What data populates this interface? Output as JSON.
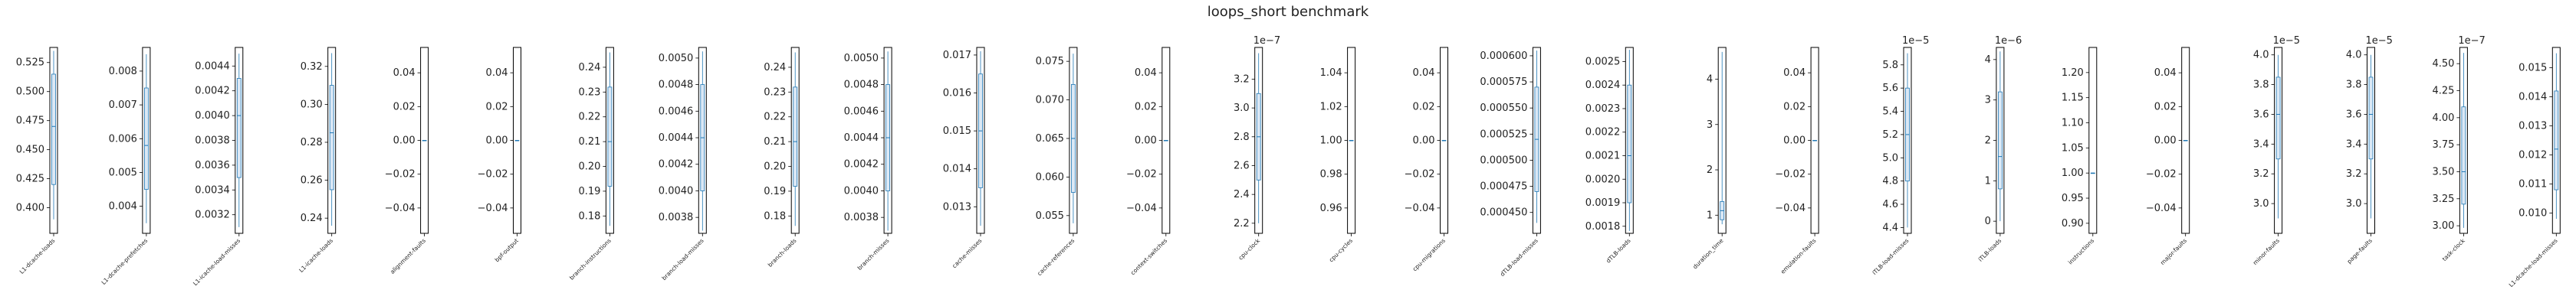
{
  "title": "loops_short benchmark",
  "colors": {
    "box": "#1f77b4",
    "fill": "#ffffff",
    "axis": "#000000",
    "text": "#222222"
  },
  "chart_data": [
    {
      "type": "box",
      "label": "L1-dcache-loads",
      "ylim": [
        0.378,
        0.538
      ],
      "ticks": [
        "0.400",
        "0.425",
        "0.450",
        "0.475",
        "0.500",
        "0.525"
      ],
      "tickvals": [
        0.4,
        0.425,
        0.45,
        0.475,
        0.5,
        0.525
      ],
      "q1": 0.42,
      "median": 0.47,
      "q3": 0.515,
      "min": 0.39,
      "max": 0.535
    },
    {
      "type": "box",
      "label": "L1-dcache-prefetches",
      "ylim": [
        0.0032,
        0.0087
      ],
      "ticks": [
        "0.004",
        "0.005",
        "0.006",
        "0.007",
        "0.008"
      ],
      "tickvals": [
        0.004,
        0.005,
        0.006,
        0.007,
        0.008
      ],
      "q1": 0.0045,
      "median": 0.0058,
      "q3": 0.0075,
      "min": 0.0035,
      "max": 0.0085
    },
    {
      "type": "box",
      "label": "L1-icache-load-misses",
      "ylim": [
        0.00305,
        0.00455
      ],
      "ticks": [
        "0.0032",
        "0.0034",
        "0.0036",
        "0.0038",
        "0.0040",
        "0.0042",
        "0.0044"
      ],
      "tickvals": [
        0.0032,
        0.0034,
        0.0036,
        0.0038,
        0.004,
        0.0042,
        0.0044
      ],
      "q1": 0.0035,
      "median": 0.004,
      "q3": 0.0043,
      "min": 0.0031,
      "max": 0.0045
    },
    {
      "type": "box",
      "label": "L1-icache-loads",
      "ylim": [
        0.232,
        0.33
      ],
      "ticks": [
        "0.24",
        "0.26",
        "0.28",
        "0.30",
        "0.32"
      ],
      "tickvals": [
        0.24,
        0.26,
        0.28,
        0.3,
        0.32
      ],
      "q1": 0.255,
      "median": 0.285,
      "q3": 0.31,
      "min": 0.236,
      "max": 0.327
    },
    {
      "type": "box",
      "label": "alignment-faults",
      "ylim": [
        -0.055,
        0.055
      ],
      "ticks": [
        "−0.04",
        "−0.02",
        "0.00",
        "0.02",
        "0.04"
      ],
      "tickvals": [
        -0.04,
        -0.02,
        0,
        0.02,
        0.04
      ],
      "q1": 0,
      "median": 0,
      "q3": 0,
      "min": 0,
      "max": 0
    },
    {
      "type": "box",
      "label": "bpf-output",
      "ylim": [
        -0.055,
        0.055
      ],
      "ticks": [
        "−0.04",
        "−0.02",
        "0.00",
        "0.02",
        "0.04"
      ],
      "tickvals": [
        -0.04,
        -0.02,
        0,
        0.02,
        0.04
      ],
      "q1": 0,
      "median": 0,
      "q3": 0,
      "min": 0,
      "max": 0
    },
    {
      "type": "box",
      "label": "branch-instructions",
      "ylim": [
        0.173,
        0.248
      ],
      "ticks": [
        "0.18",
        "0.19",
        "0.20",
        "0.21",
        "0.22",
        "0.23",
        "0.24"
      ],
      "tickvals": [
        0.18,
        0.19,
        0.2,
        0.21,
        0.22,
        0.23,
        0.24
      ],
      "q1": 0.192,
      "median": 0.21,
      "q3": 0.232,
      "min": 0.176,
      "max": 0.246
    },
    {
      "type": "box",
      "label": "branch-load-misses",
      "ylim": [
        0.00368,
        0.00508
      ],
      "ticks": [
        "0.0038",
        "0.0040",
        "0.0042",
        "0.0044",
        "0.0046",
        "0.0048",
        "0.0050"
      ],
      "tickvals": [
        0.0038,
        0.004,
        0.0042,
        0.0044,
        0.0046,
        0.0048,
        0.005
      ],
      "q1": 0.004,
      "median": 0.0044,
      "q3": 0.0048,
      "min": 0.0037,
      "max": 0.00505
    },
    {
      "type": "box",
      "label": "branch-loads",
      "ylim": [
        0.173,
        0.248
      ],
      "ticks": [
        "0.18",
        "0.19",
        "0.20",
        "0.21",
        "0.22",
        "0.23",
        "0.24"
      ],
      "tickvals": [
        0.18,
        0.19,
        0.2,
        0.21,
        0.22,
        0.23,
        0.24
      ],
      "q1": 0.192,
      "median": 0.21,
      "q3": 0.232,
      "min": 0.176,
      "max": 0.246
    },
    {
      "type": "box",
      "label": "branch-misses",
      "ylim": [
        0.00368,
        0.00508
      ],
      "ticks": [
        "0.0038",
        "0.0040",
        "0.0042",
        "0.0044",
        "0.0046",
        "0.0048",
        "0.0050"
      ],
      "tickvals": [
        0.0038,
        0.004,
        0.0042,
        0.0044,
        0.0046,
        0.0048,
        0.005
      ],
      "q1": 0.004,
      "median": 0.0044,
      "q3": 0.0048,
      "min": 0.0037,
      "max": 0.00505
    },
    {
      "type": "box",
      "label": "cache-misses",
      "ylim": [
        0.0123,
        0.0172
      ],
      "ticks": [
        "0.013",
        "0.014",
        "0.015",
        "0.016",
        "0.017"
      ],
      "tickvals": [
        0.013,
        0.014,
        0.015,
        0.016,
        0.017
      ],
      "q1": 0.0135,
      "median": 0.015,
      "q3": 0.0165,
      "min": 0.0125,
      "max": 0.0171
    },
    {
      "type": "box",
      "label": "cache-references",
      "ylim": [
        0.0527,
        0.0768
      ],
      "ticks": [
        "0.055",
        "0.060",
        "0.065",
        "0.070",
        "0.075"
      ],
      "tickvals": [
        0.055,
        0.06,
        0.065,
        0.07,
        0.075
      ],
      "q1": 0.058,
      "median": 0.065,
      "q3": 0.072,
      "min": 0.054,
      "max": 0.076
    },
    {
      "type": "box",
      "label": "context-switches",
      "ylim": [
        -0.055,
        0.055
      ],
      "ticks": [
        "−0.04",
        "−0.02",
        "0.00",
        "0.02",
        "0.04"
      ],
      "tickvals": [
        -0.04,
        -0.02,
        0,
        0.02,
        0.04
      ],
      "q1": 0,
      "median": 0,
      "q3": 0,
      "min": 0,
      "max": 0
    },
    {
      "type": "box",
      "label": "cpu-clock",
      "exponent": "1e−7",
      "ylim": [
        2.13,
        3.42
      ],
      "ticks": [
        "2.2",
        "2.4",
        "2.6",
        "2.8",
        "3.0",
        "3.2"
      ],
      "tickvals": [
        2.2,
        2.4,
        2.6,
        2.8,
        3.0,
        3.2
      ],
      "q1": 2.5,
      "median": 2.8,
      "q3": 3.1,
      "min": 2.2,
      "max": 3.38
    },
    {
      "type": "box",
      "label": "cpu-cycles",
      "ylim": [
        0.945,
        1.055
      ],
      "ticks": [
        "0.96",
        "0.98",
        "1.00",
        "1.02",
        "1.04"
      ],
      "tickvals": [
        0.96,
        0.98,
        1.0,
        1.02,
        1.04
      ],
      "q1": 1.0,
      "median": 1.0,
      "q3": 1.0,
      "min": 1.0,
      "max": 1.0
    },
    {
      "type": "box",
      "label": "cpu-migrations",
      "ylim": [
        -0.055,
        0.055
      ],
      "ticks": [
        "−0.04",
        "−0.02",
        "0.00",
        "0.02",
        "0.04"
      ],
      "tickvals": [
        -0.04,
        -0.02,
        0,
        0.02,
        0.04
      ],
      "q1": 0,
      "median": 0,
      "q3": 0,
      "min": 0,
      "max": 0
    },
    {
      "type": "box",
      "label": "dTLB-load-misses",
      "ylim": [
        0.00043,
        0.000608
      ],
      "ticks": [
        "0.000450",
        "0.000475",
        "0.000500",
        "0.000525",
        "0.000550",
        "0.000575",
        "0.000600"
      ],
      "tickvals": [
        0.00045,
        0.000475,
        0.0005,
        0.000525,
        0.00055,
        0.000575,
        0.0006
      ],
      "q1": 0.00047,
      "median": 0.00052,
      "q3": 0.00057,
      "min": 0.00044,
      "max": 0.000605
    },
    {
      "type": "box",
      "label": "dTLB-loads",
      "ylim": [
        0.00177,
        0.00256
      ],
      "ticks": [
        "0.0018",
        "0.0019",
        "0.0020",
        "0.0021",
        "0.0022",
        "0.0023",
        "0.0024",
        "0.0025"
      ],
      "tickvals": [
        0.0018,
        0.0019,
        0.002,
        0.0021,
        0.0022,
        0.0023,
        0.0024,
        0.0025
      ],
      "q1": 0.0019,
      "median": 0.0021,
      "q3": 0.0024,
      "min": 0.00178,
      "max": 0.00255
    },
    {
      "type": "box",
      "label": "duration_time",
      "ylim": [
        0.6,
        4.7
      ],
      "ticks": [
        "1",
        "2",
        "3",
        "4"
      ],
      "tickvals": [
        1,
        2,
        3,
        4
      ],
      "q1": 0.9,
      "median": 1.1,
      "q3": 1.3,
      "min": 0.8,
      "max": 4.6
    },
    {
      "type": "box",
      "label": "emulation-faults",
      "ylim": [
        -0.055,
        0.055
      ],
      "ticks": [
        "−0.04",
        "−0.02",
        "0.00",
        "0.02",
        "0.04"
      ],
      "tickvals": [
        -0.04,
        -0.02,
        0,
        0.02,
        0.04
      ],
      "q1": 0,
      "median": 0,
      "q3": 0,
      "min": 0,
      "max": 0
    },
    {
      "type": "box",
      "label": "iTLB-load-misses",
      "exponent": "1e−5",
      "ylim": [
        4.35,
        5.95
      ],
      "ticks": [
        "4.4",
        "4.6",
        "4.8",
        "5.0",
        "5.2",
        "5.4",
        "5.6",
        "5.8"
      ],
      "tickvals": [
        4.4,
        4.6,
        4.8,
        5.0,
        5.2,
        5.4,
        5.6,
        5.8
      ],
      "q1": 4.8,
      "median": 5.2,
      "q3": 5.6,
      "min": 4.4,
      "max": 5.9
    },
    {
      "type": "box",
      "label": "iTLB-loads",
      "exponent": "1e−6",
      "ylim": [
        -0.3,
        4.3
      ],
      "ticks": [
        "0",
        "1",
        "2",
        "3",
        "4"
      ],
      "tickvals": [
        0,
        1,
        2,
        3,
        4
      ],
      "q1": 0.8,
      "median": 1.6,
      "q3": 3.2,
      "min": 0,
      "max": 4.2
    },
    {
      "type": "box",
      "label": "instructions",
      "ylim": [
        0.88,
        1.25
      ],
      "ticks": [
        "0.90",
        "0.95",
        "1.00",
        "1.05",
        "1.10",
        "1.15",
        "1.20"
      ],
      "tickvals": [
        0.9,
        0.95,
        1.0,
        1.05,
        1.1,
        1.15,
        1.2
      ],
      "q1": 1.0,
      "median": 1.0,
      "q3": 1.0,
      "min": 1.0,
      "max": 1.0
    },
    {
      "type": "box",
      "label": "major-faults",
      "ylim": [
        -0.055,
        0.055
      ],
      "ticks": [
        "−0.04",
        "−0.02",
        "0.00",
        "0.02",
        "0.04"
      ],
      "tickvals": [
        -0.04,
        -0.02,
        0,
        0.02,
        0.04
      ],
      "q1": 0,
      "median": 0,
      "q3": 0,
      "min": 0,
      "max": 0
    },
    {
      "type": "box",
      "label": "minor-faults",
      "exponent": "1e−5",
      "ylim": [
        2.8,
        4.05
      ],
      "ticks": [
        "3.0",
        "3.2",
        "3.4",
        "3.6",
        "3.8",
        "4.0"
      ],
      "tickvals": [
        3.0,
        3.2,
        3.4,
        3.6,
        3.8,
        4.0
      ],
      "q1": 3.3,
      "median": 3.6,
      "q3": 3.85,
      "min": 2.9,
      "max": 4.0
    },
    {
      "type": "box",
      "label": "page-faults",
      "exponent": "1e−5",
      "ylim": [
        2.8,
        4.05
      ],
      "ticks": [
        "3.0",
        "3.2",
        "3.4",
        "3.6",
        "3.8",
        "4.0"
      ],
      "tickvals": [
        3.0,
        3.2,
        3.4,
        3.6,
        3.8,
        4.0
      ],
      "q1": 3.3,
      "median": 3.6,
      "q3": 3.85,
      "min": 2.9,
      "max": 4.0
    },
    {
      "type": "box",
      "label": "task-clock",
      "exponent": "1e−7",
      "ylim": [
        2.93,
        4.65
      ],
      "ticks": [
        "3.00",
        "3.25",
        "3.50",
        "3.75",
        "4.00",
        "4.25",
        "4.50"
      ],
      "tickvals": [
        3.0,
        3.25,
        3.5,
        3.75,
        4.0,
        4.25,
        4.5
      ],
      "q1": 3.2,
      "median": 3.5,
      "q3": 4.1,
      "min": 2.98,
      "max": 4.6
    },
    {
      "type": "box",
      "label": "L1-dcache-load-misses",
      "ylim": [
        0.0093,
        0.0157
      ],
      "ticks": [
        "0.010",
        "0.011",
        "0.012",
        "0.013",
        "0.014",
        "0.015"
      ],
      "tickvals": [
        0.01,
        0.011,
        0.012,
        0.013,
        0.014,
        0.015
      ],
      "q1": 0.0108,
      "median": 0.0122,
      "q3": 0.0142,
      "min": 0.0098,
      "max": 0.0155
    }
  ]
}
